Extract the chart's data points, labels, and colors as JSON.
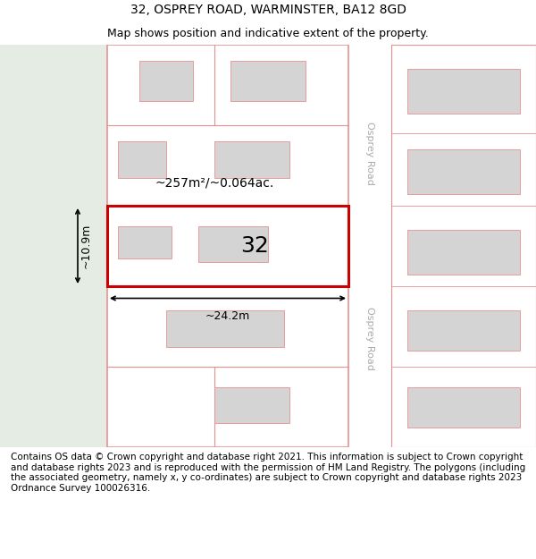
{
  "title": "32, OSPREY ROAD, WARMINSTER, BA12 8GD",
  "subtitle": "Map shows position and indicative extent of the property.",
  "footer": "Contains OS data © Crown copyright and database right 2021. This information is subject to Crown copyright and database rights 2023 and is reproduced with the permission of HM Land Registry. The polygons (including the associated geometry, namely x, y co-ordinates) are subject to Crown copyright and database rights 2023 Ordnance Survey 100026316.",
  "bg_map_color": "#f0f4f0",
  "bg_left_color": "#e4ece4",
  "road_color": "#ffffff",
  "plot_outline_color": "#e89090",
  "highlight_color": "#cc0000",
  "building_fill": "#d4d4d4",
  "building_outline": "#e89090",
  "area_text": "~257m²/~0.064ac.",
  "width_text": "~24.2m",
  "height_text": "~10.9m",
  "number_text": "32",
  "road_label_top": "Osprey Road",
  "road_label_bottom": "Osprey Road",
  "title_fontsize": 10,
  "subtitle_fontsize": 9,
  "footer_fontsize": 7.5
}
